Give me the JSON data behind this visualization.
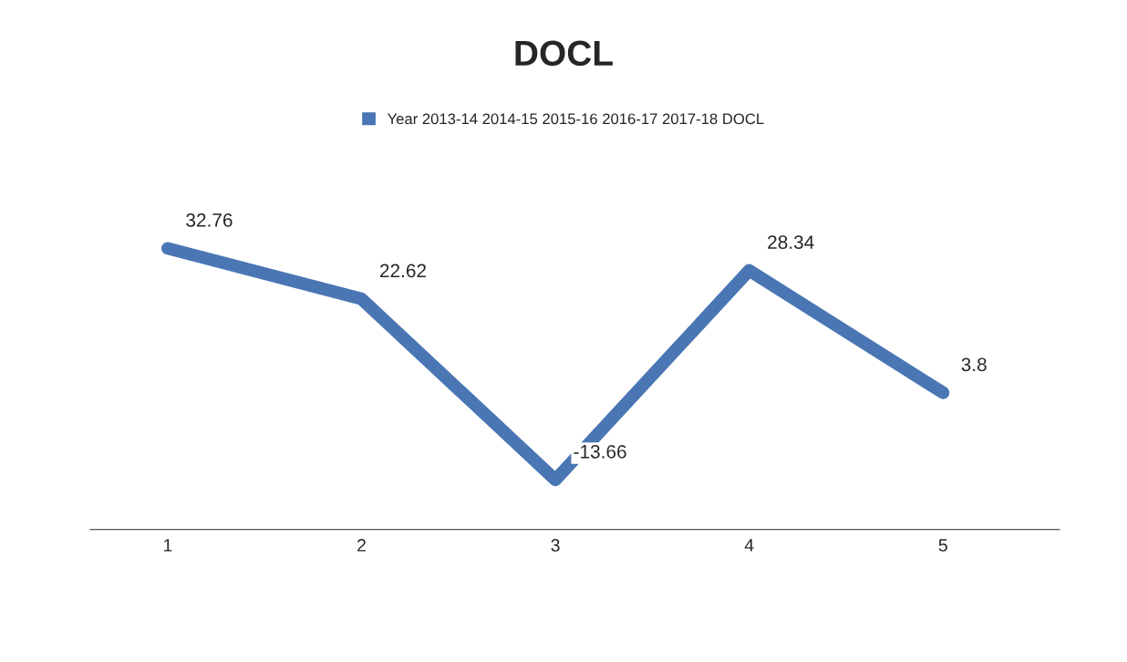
{
  "chart_data": {
    "type": "line",
    "title": "DOCL",
    "categories": [
      "1",
      "2",
      "3",
      "4",
      "5"
    ],
    "series": [
      {
        "name": "Year 2013-14 2014-15 2015-16 2016-17 2017-18 DOCL",
        "color": "#4a76b4",
        "values": [
          32.76,
          22.62,
          -13.66,
          28.34,
          3.8
        ]
      }
    ],
    "data_labels": true,
    "legend": "top",
    "grid": false,
    "line_style": "solid"
  }
}
